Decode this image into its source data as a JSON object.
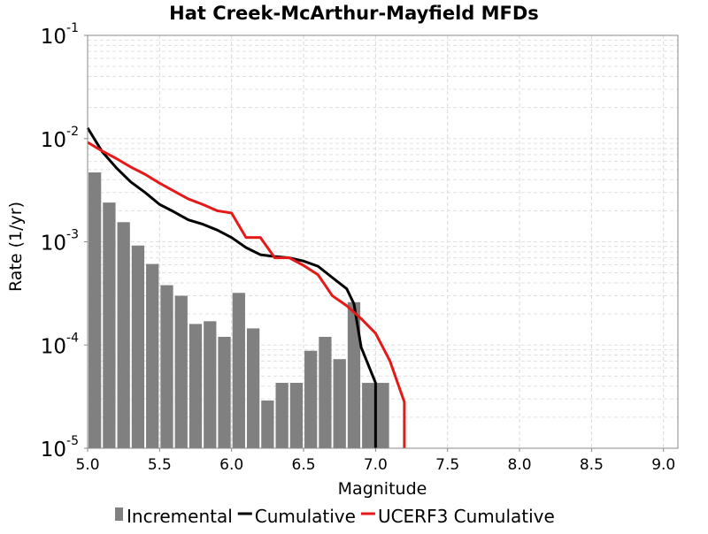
{
  "chart_data": {
    "type": "bar",
    "title": "Hat Creek-McArthur-Mayfield MFDs",
    "xlabel": "Magnitude",
    "ylabel": "Rate (1/yr)",
    "xlim": [
      5.0,
      9.1
    ],
    "ylim": [
      1e-05,
      0.1
    ],
    "yscale": "log",
    "grid": true,
    "legend_position": "bottom",
    "x_ticks": [
      "5.0",
      "5.5",
      "6.0",
      "6.5",
      "7.0",
      "7.5",
      "8.0",
      "8.5",
      "9.0"
    ],
    "x_tick_values": [
      5.0,
      5.5,
      6.0,
      6.5,
      7.0,
      7.5,
      8.0,
      8.5,
      9.0
    ],
    "y_ticks": [
      {
        "value": 0.1,
        "base": "10",
        "exp": "-1"
      },
      {
        "value": 0.01,
        "base": "10",
        "exp": "-2"
      },
      {
        "value": 0.001,
        "base": "10",
        "exp": "-3"
      },
      {
        "value": 0.0001,
        "base": "10",
        "exp": "-4"
      },
      {
        "value": 1e-05,
        "base": "10",
        "exp": "-5"
      }
    ],
    "series": [
      {
        "name": "Incremental",
        "type": "bar",
        "color": "#808080",
        "bin_width": 0.1,
        "x": [
          5.0,
          5.1,
          5.2,
          5.3,
          5.4,
          5.5,
          5.6,
          5.7,
          5.8,
          5.9,
          6.0,
          6.1,
          6.2,
          6.3,
          6.4,
          6.5,
          6.6,
          6.7,
          6.8,
          6.9,
          7.0
        ],
        "values": [
          0.0047,
          0.0024,
          0.00155,
          0.00092,
          0.00061,
          0.00038,
          0.0003,
          0.00016,
          0.00017,
          0.00012,
          0.00032,
          0.000145,
          2.9e-05,
          4.3e-05,
          4.3e-05,
          8.8e-05,
          0.00012,
          7.3e-05,
          0.00026,
          4.3e-05,
          4.3e-05
        ]
      },
      {
        "name": "Cumulative",
        "type": "line",
        "color": "#000000",
        "x": [
          5.0,
          5.1,
          5.2,
          5.3,
          5.4,
          5.5,
          5.6,
          5.7,
          5.8,
          5.9,
          6.0,
          6.1,
          6.2,
          6.3,
          6.4,
          6.5,
          6.6,
          6.7,
          6.8,
          6.85,
          6.9,
          7.0,
          7.0
        ],
        "values": [
          0.0127,
          0.0075,
          0.0052,
          0.0038,
          0.003,
          0.0023,
          0.00195,
          0.00163,
          0.00148,
          0.0013,
          0.0011,
          0.00088,
          0.00075,
          0.00072,
          0.0007,
          0.00065,
          0.00058,
          0.00045,
          0.00035,
          0.00025,
          9.5e-05,
          4.3e-05,
          1e-05
        ]
      },
      {
        "name": "UCERF3 Cumulative",
        "type": "line",
        "color": "#e61919",
        "x": [
          5.0,
          5.1,
          5.2,
          5.3,
          5.4,
          5.5,
          5.6,
          5.7,
          5.8,
          5.9,
          6.0,
          6.1,
          6.2,
          6.3,
          6.4,
          6.5,
          6.6,
          6.7,
          6.8,
          6.9,
          7.0,
          7.1,
          7.2,
          7.2
        ],
        "values": [
          0.0092,
          0.0076,
          0.0064,
          0.0053,
          0.0045,
          0.0037,
          0.0031,
          0.0026,
          0.0023,
          0.002,
          0.0019,
          0.0011,
          0.0011,
          0.0007,
          0.0007,
          0.00059,
          0.00048,
          0.0003,
          0.00024,
          0.00018,
          0.00013,
          7e-05,
          2.8e-05,
          1e-05
        ]
      }
    ]
  }
}
